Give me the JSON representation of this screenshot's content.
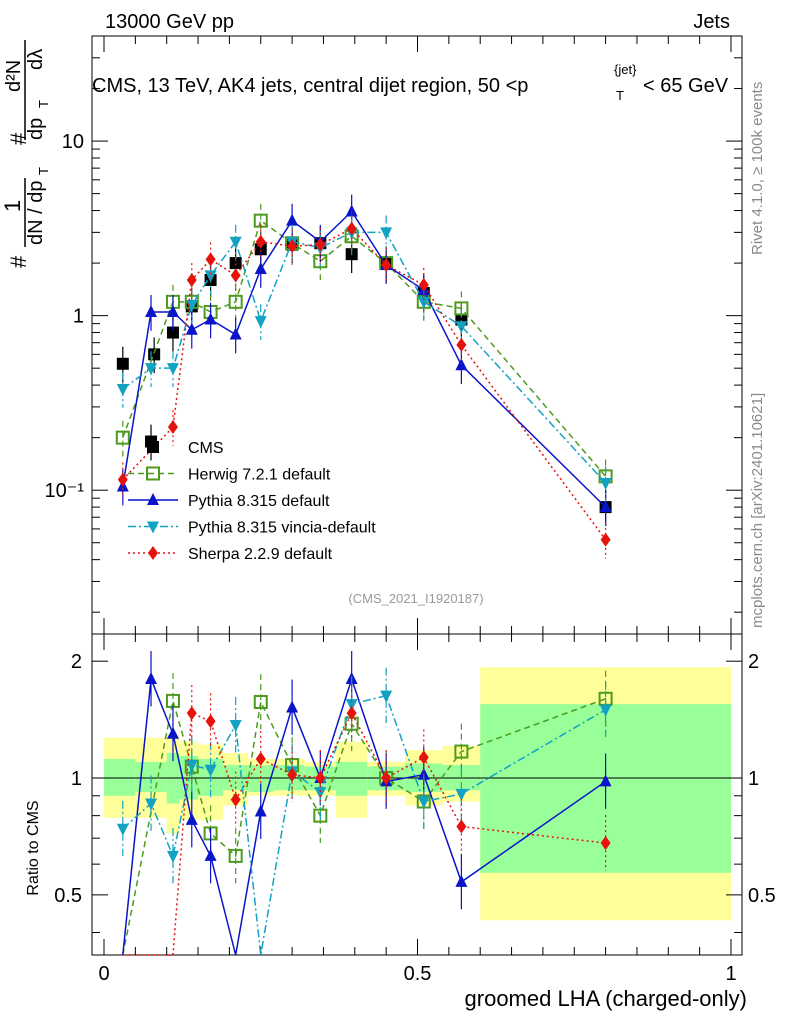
{
  "header": {
    "left": "13000 GeV pp",
    "right": "Jets",
    "title_main": "CMS, 13 TeV, AK4 jets, central dijet region, 50 <p",
    "title_sup": "{jet}",
    "title_sub": "T",
    "title_tail": "< 65 GeV",
    "right_vertical": "Rivet 4.1.0, ≥ 100k events",
    "right_vertical_2": "mcplots.cern.ch [arXiv:2401.10621]",
    "analysis_id": "(CMS_2021_I1920187)"
  },
  "axes": {
    "xlabel": "groomed LHA (charged-only)",
    "ylabel_main_1": "1",
    "ylabel_main_2": "dN / dp",
    "ylabel_main_sub": "T",
    "ylabel_main_3": "d²N",
    "ylabel_main_4": "dp",
    "ylabel_main_4sub": "T",
    "ylabel_main_5": "dλ",
    "ylabel_ratio": "Ratio to CMS",
    "xticks": [
      "0",
      "0.5",
      "1"
    ],
    "yticks_main": [
      "10⁻¹",
      "1",
      "10"
    ],
    "yticks_ratio": [
      "0.5",
      "1",
      "2"
    ]
  },
  "chart_data": {
    "type": "line",
    "title": "CMS, 13 TeV, AK4 jets, central dijet region, 50 < pT{jet} < 65 GeV",
    "xlabel": "groomed LHA (charged-only)",
    "ylabel": "1/(dN/dpT) d²N/(dpT dλ)",
    "xlim": [
      0,
      1
    ],
    "ylim_main": [
      0.015,
      40
    ],
    "ylim_ratio": [
      0.35,
      2.35
    ],
    "yscale": "log",
    "x": [
      0.03,
      0.08,
      0.11,
      0.14,
      0.17,
      0.21,
      0.25,
      0.3,
      0.345,
      0.395,
      0.45,
      0.51,
      0.57,
      0.8
    ],
    "bins": [
      0.0,
      0.05,
      0.1,
      0.12,
      0.15,
      0.19,
      0.23,
      0.27,
      0.32,
      0.37,
      0.42,
      0.48,
      0.54,
      0.6,
      1.0
    ],
    "band_yellow": [
      [
        0.79,
        1.27
      ],
      [
        0.79,
        1.27
      ],
      [
        0.72,
        1.29
      ],
      [
        0.78,
        1.24
      ],
      [
        0.78,
        1.22
      ],
      [
        0.85,
        1.16
      ],
      [
        0.9,
        1.12
      ],
      [
        0.9,
        1.12
      ],
      [
        0.9,
        1.1
      ],
      [
        0.79,
        1.24
      ],
      [
        0.9,
        1.1
      ],
      [
        0.85,
        1.18
      ],
      [
        0.87,
        1.21
      ],
      [
        0.43,
        1.93
      ]
    ],
    "band_green": [
      [
        0.9,
        1.12
      ],
      [
        0.92,
        1.1
      ],
      [
        0.86,
        1.16
      ],
      [
        0.88,
        1.14
      ],
      [
        0.9,
        1.12
      ],
      [
        0.93,
        1.08
      ],
      [
        0.92,
        1.08
      ],
      [
        0.93,
        1.08
      ],
      [
        0.93,
        1.07
      ],
      [
        0.9,
        1.1
      ],
      [
        0.93,
        1.07
      ],
      [
        0.92,
        1.09
      ],
      [
        0.93,
        1.08
      ],
      [
        0.57,
        1.55
      ]
    ],
    "series": [
      {
        "name": "CMS",
        "legend": "CMS",
        "color": "#000000",
        "marker": "square-filled",
        "style": "none",
        "values": [
          0.53,
          0.19,
          0.6,
          0.8,
          1.13,
          1.6,
          2.0,
          2.4,
          2.55,
          2.6,
          2.25,
          2.0,
          1.35,
          0.95,
          0.08
        ],
        "x": [
          0.03,
          0.075,
          0.08,
          0.11,
          0.14,
          0.17,
          0.21,
          0.25,
          0.3,
          0.345,
          0.395,
          0.45,
          0.51,
          0.57,
          0.8
        ],
        "ratio": []
      },
      {
        "name": "Herwig 7.2.1 default",
        "legend": "Herwig 7.2.1 default",
        "color": "#4d9a1e",
        "marker": "square-open",
        "style": "dashed",
        "values": [
          0.2,
          1.2,
          1.2,
          1.05,
          1.2,
          3.5,
          2.6,
          2.05,
          2.85,
          2.0,
          1.2,
          1.1,
          0.12
        ],
        "x": [
          0.03,
          0.11,
          0.14,
          0.17,
          0.21,
          0.25,
          0.3,
          0.345,
          0.395,
          0.45,
          0.51,
          0.57,
          0.8
        ],
        "ratio": [
          0.1,
          1.58,
          1.07,
          0.72,
          0.63,
          1.57,
          1.08,
          0.8,
          1.38,
          1.0,
          0.87,
          1.17,
          1.6
        ]
      },
      {
        "name": "Pythia 8.315 default",
        "legend": "Pythia 8.315 default",
        "color": "#0a14c8",
        "marker": "triangle-up",
        "style": "solid",
        "values": [
          0.105,
          1.05,
          1.05,
          0.83,
          0.95,
          0.78,
          1.85,
          3.5,
          2.65,
          3.95,
          1.95,
          1.4,
          0.52,
          0.08
        ],
        "x": [
          0.03,
          0.075,
          0.11,
          0.14,
          0.17,
          0.21,
          0.25,
          0.3,
          0.345,
          0.395,
          0.45,
          0.51,
          0.57,
          0.8
        ],
        "ratio": [
          0.2,
          1.8,
          1.3,
          0.78,
          0.63,
          0.3,
          0.82,
          1.52,
          1.0,
          1.8,
          0.98,
          1.02,
          0.54,
          0.98
        ]
      },
      {
        "name": "Pythia 8.315 vincia-default",
        "legend": "Pythia 8.315 vincia-default",
        "color": "#12a2c2",
        "marker": "triangle-down",
        "style": "dashdot",
        "values": [
          0.38,
          0.5,
          0.5,
          1.15,
          1.7,
          2.65,
          0.93,
          2.65,
          2.45,
          3.0,
          3.0,
          1.2,
          0.87,
          0.11
        ],
        "x": [
          0.03,
          0.075,
          0.11,
          0.14,
          0.17,
          0.21,
          0.25,
          0.3,
          0.345,
          0.395,
          0.45,
          0.51,
          0.57,
          0.8
        ],
        "ratio": [
          0.74,
          0.86,
          0.63,
          1.08,
          1.05,
          1.37,
          0.3,
          1.04,
          0.92,
          1.55,
          1.63,
          0.87,
          0.91,
          1.5
        ]
      },
      {
        "name": "Sherpa 2.2.9 default",
        "legend": "Sherpa 2.2.9 default",
        "color": "#e6120e",
        "marker": "diamond",
        "style": "dotted",
        "values": [
          0.115,
          0.23,
          1.6,
          2.1,
          1.7,
          2.65,
          2.5,
          2.55,
          3.15,
          1.95,
          1.5,
          0.68,
          0.052
        ],
        "x": [
          0.03,
          0.11,
          0.14,
          0.17,
          0.21,
          0.25,
          0.3,
          0.345,
          0.395,
          0.45,
          0.51,
          0.57,
          0.8
        ],
        "ratio": [
          0.2,
          0.3,
          1.47,
          1.4,
          0.88,
          1.12,
          1.02,
          1.0,
          1.47,
          1.0,
          1.13,
          0.75,
          0.68
        ]
      }
    ]
  }
}
